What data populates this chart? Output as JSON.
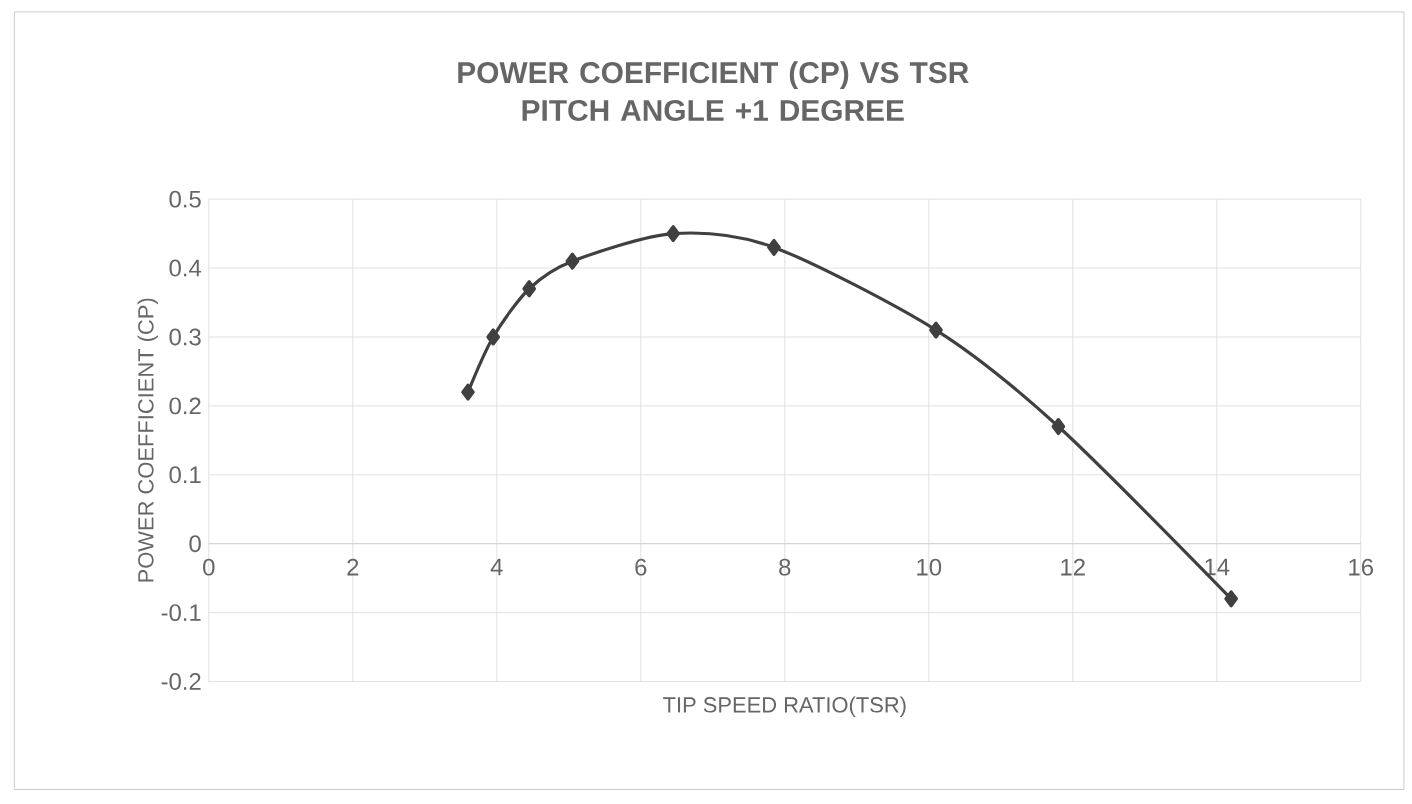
{
  "chart_data": {
    "type": "line",
    "title": "POWER COEFFICIENT (CP) VS TSR\nPITCH ANGLE +1 DEGREE",
    "xlabel": "TIP SPEED RATIO(TSR)",
    "ylabel": "POWER COEFFICIENT (CP)",
    "series": [
      {
        "color": "#404040",
        "x": [
          3.6,
          3.95,
          4.45,
          5.05,
          6.45,
          7.85,
          10.1,
          11.8,
          14.2
        ],
        "values": [
          0.22,
          0.3,
          0.37,
          0.41,
          0.45,
          0.43,
          0.31,
          0.17,
          -0.08
        ]
      }
    ],
    "xlim": [
      0,
      16
    ],
    "xticks": [
      0,
      2,
      4,
      6,
      8,
      10,
      12,
      14,
      16
    ],
    "ylim": [
      -0.2,
      0.5
    ],
    "yticks": [
      -0.2,
      -0.1,
      0,
      0.1,
      0.2,
      0.3,
      0.4,
      0.5
    ],
    "grid": true,
    "marker": "diamond",
    "line_style": "solid"
  }
}
